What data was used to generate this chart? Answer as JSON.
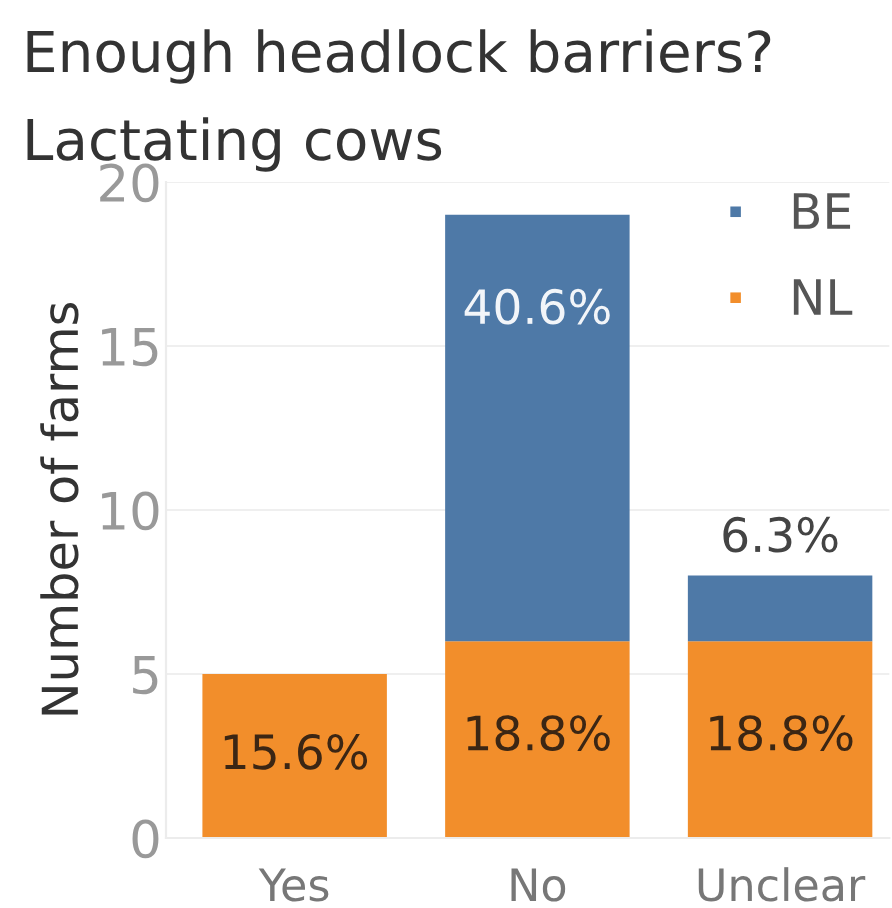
{
  "chart_data": {
    "type": "bar",
    "title": "Enough headlock barriers?",
    "subtitle": "Lactating cows",
    "ylabel": "Number of farms",
    "categories": [
      "Yes",
      "No",
      "Unclear"
    ],
    "stacked": true,
    "series": [
      {
        "name": "NL",
        "color": "#f28e2b",
        "values": [
          5,
          6,
          6
        ]
      },
      {
        "name": "BE",
        "color": "#4e79a7",
        "values": [
          0,
          13,
          2
        ]
      }
    ],
    "annotations": [
      {
        "text": "15.6%",
        "x": "Yes",
        "y": 5
      },
      {
        "text": "18.8%",
        "x": "No",
        "y": 6
      },
      {
        "text": "40.6%",
        "x": "No",
        "y": 19
      },
      {
        "text": "18.8%",
        "x": "Unclear",
        "y": 6
      },
      {
        "text": "6.3%",
        "x": "Unclear",
        "y": 8
      }
    ],
    "ylim": [
      0,
      20
    ],
    "yticks": [
      0,
      5,
      10,
      15,
      20
    ],
    "grid": "y",
    "legend": "top right"
  }
}
